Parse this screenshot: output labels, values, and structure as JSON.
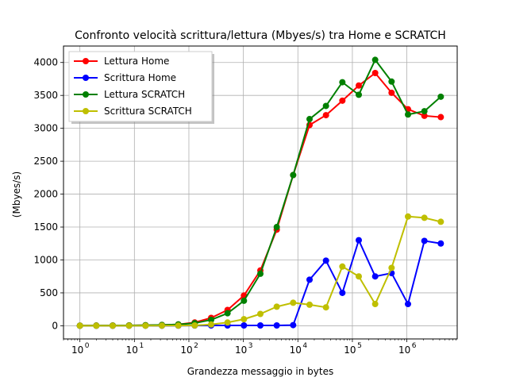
{
  "chart_data": {
    "type": "line",
    "title": "Confronto velocità scrittura/lettura (Mbyes/s) tra Home e SCRATCH",
    "xlabel": "Grandezza messaggio in bytes",
    "ylabel": "(Mbyes/s)",
    "xscale": "log",
    "xlim": [
      0.5,
      8388608
    ],
    "ylim": [
      -200,
      4250
    ],
    "xtick_labels": [
      {
        "value": 1,
        "base": "10",
        "exp": "0"
      },
      {
        "value": 10,
        "base": "10",
        "exp": "1"
      },
      {
        "value": 100,
        "base": "10",
        "exp": "2"
      },
      {
        "value": 1000,
        "base": "10",
        "exp": "3"
      },
      {
        "value": 10000,
        "base": "10",
        "exp": "4"
      },
      {
        "value": 100000,
        "base": "10",
        "exp": "5"
      },
      {
        "value": 1000000,
        "base": "10",
        "exp": "6"
      }
    ],
    "yticks": [
      0,
      500,
      1000,
      1500,
      2000,
      2500,
      3000,
      3500,
      4000
    ],
    "grid": true,
    "legend_position": "top-left",
    "x": [
      1,
      2,
      4,
      8,
      16,
      32,
      64,
      128,
      256,
      512,
      1024,
      2048,
      4096,
      8192,
      16384,
      32768,
      65536,
      131072,
      262144,
      524288,
      1048576,
      2097152,
      4194304
    ],
    "series": [
      {
        "name": "Lettura Home",
        "color": "#ff0000",
        "values": [
          2,
          3,
          4,
          5,
          8,
          12,
          20,
          50,
          120,
          240,
          460,
          840,
          1460,
          2290,
          3050,
          3200,
          3420,
          3650,
          3840,
          3540,
          3290,
          3190,
          3170
        ]
      },
      {
        "name": "Scrittura Home",
        "color": "#0000ff",
        "values": [
          0,
          0,
          0,
          0,
          1,
          1,
          2,
          3,
          5,
          5,
          5,
          5,
          5,
          10,
          700,
          990,
          500,
          1300,
          750,
          800,
          330,
          1290,
          1250
        ]
      },
      {
        "name": "Lettura SCRATCH",
        "color": "#008000",
        "values": [
          2,
          3,
          4,
          5,
          8,
          12,
          20,
          40,
          90,
          190,
          380,
          790,
          1500,
          2290,
          3140,
          3340,
          3700,
          3510,
          4040,
          3710,
          3210,
          3260,
          3480
        ]
      },
      {
        "name": "Scrittura SCRATCH",
        "color": "#bfbf00",
        "values": [
          0,
          0,
          0,
          0,
          1,
          2,
          3,
          5,
          20,
          50,
          100,
          180,
          290,
          350,
          320,
          280,
          900,
          750,
          330,
          880,
          1660,
          1640,
          1580
        ]
      }
    ],
    "lower_series_overlay": {
      "note_series": "Scrittura Home",
      "comment_omitted": true
    }
  }
}
